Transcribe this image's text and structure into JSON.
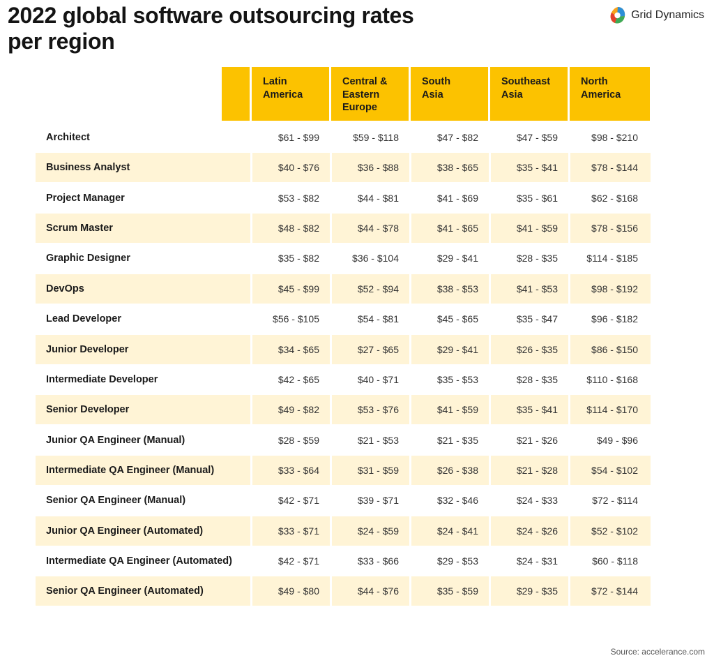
{
  "header": {
    "title": "2022 global software outsourcing rates per region",
    "logo_text": "Grid Dynamics",
    "logo_icon": "grid-dynamics-logo-icon"
  },
  "footer": {
    "source": "Source: accelerance.com"
  },
  "colors": {
    "header_fill": "#FCC200",
    "alt_row_fill": "#FFF4D6"
  },
  "chart_data": {
    "type": "table",
    "title": "2022 global software outsourcing rates per region",
    "columns": [
      "Latin\nAmerica",
      "Central &\nEastern\nEurope",
      "South\nAsia",
      "Southeast\nAsia",
      "North\nAmerica"
    ],
    "rows": [
      {
        "role": "Architect",
        "values": [
          "$61 - $99",
          "$59 - $118",
          "$47 - $82",
          "$47 - $59",
          "$98 - $210"
        ]
      },
      {
        "role": "Business Analyst",
        "values": [
          "$40 - $76",
          "$36 - $88",
          "$38 - $65",
          "$35 - $41",
          "$78 - $144"
        ]
      },
      {
        "role": "Project Manager",
        "values": [
          "$53 - $82",
          "$44 - $81",
          "$41 - $69",
          "$35 - $61",
          "$62 - $168"
        ]
      },
      {
        "role": "Scrum Master",
        "values": [
          "$48 - $82",
          "$44 - $78",
          "$41 - $65",
          "$41 - $59",
          "$78 - $156"
        ]
      },
      {
        "role": "Graphic Designer",
        "values": [
          "$35 - $82",
          "$36 - $104",
          "$29 - $41",
          "$28 - $35",
          "$114 - $185"
        ]
      },
      {
        "role": "DevOps",
        "values": [
          "$45 - $99",
          "$52 - $94",
          "$38 - $53",
          "$41 - $53",
          "$98 - $192"
        ]
      },
      {
        "role": "Lead Developer",
        "values": [
          "$56 - $105",
          "$54 - $81",
          "$45 - $65",
          "$35 - $47",
          "$96 - $182"
        ]
      },
      {
        "role": "Junior Developer",
        "values": [
          "$34 - $65",
          "$27 - $65",
          "$29 - $41",
          "$26 - $35",
          "$86 - $150"
        ]
      },
      {
        "role": "Intermediate Developer",
        "values": [
          "$42 - $65",
          "$40 - $71",
          "$35 - $53",
          "$28 - $35",
          "$110 - $168"
        ]
      },
      {
        "role": "Senior Developer",
        "values": [
          "$49 - $82",
          "$53 - $76",
          "$41 - $59",
          "$35 - $41",
          "$114 - $170"
        ]
      },
      {
        "role": "Junior QA Engineer (Manual)",
        "values": [
          "$28 - $59",
          "$21 - $53",
          "$21 - $35",
          "$21 - $26",
          "$49 - $96"
        ]
      },
      {
        "role": "Intermediate QA Engineer (Manual)",
        "values": [
          "$33 - $64",
          "$31 - $59",
          "$26 - $38",
          "$21 - $28",
          "$54 - $102"
        ]
      },
      {
        "role": "Senior QA Engineer (Manual)",
        "values": [
          "$42 - $71",
          "$39 - $71",
          "$32 - $46",
          "$24 - $33",
          "$72 - $114"
        ]
      },
      {
        "role": "Junior QA Engineer (Automated)",
        "values": [
          "$33 - $71",
          "$24 - $59",
          "$24 - $41",
          "$24 - $26",
          "$52 - $102"
        ]
      },
      {
        "role": "Intermediate QA Engineer (Automated)",
        "values": [
          "$42 - $71",
          "$33 - $66",
          "$29 - $53",
          "$24 - $31",
          "$60 - $118"
        ]
      },
      {
        "role": "Senior QA Engineer (Automated)",
        "values": [
          "$49 - $80",
          "$44 - $76",
          "$35 - $59",
          "$29 - $35",
          "$72 - $144"
        ]
      }
    ]
  }
}
